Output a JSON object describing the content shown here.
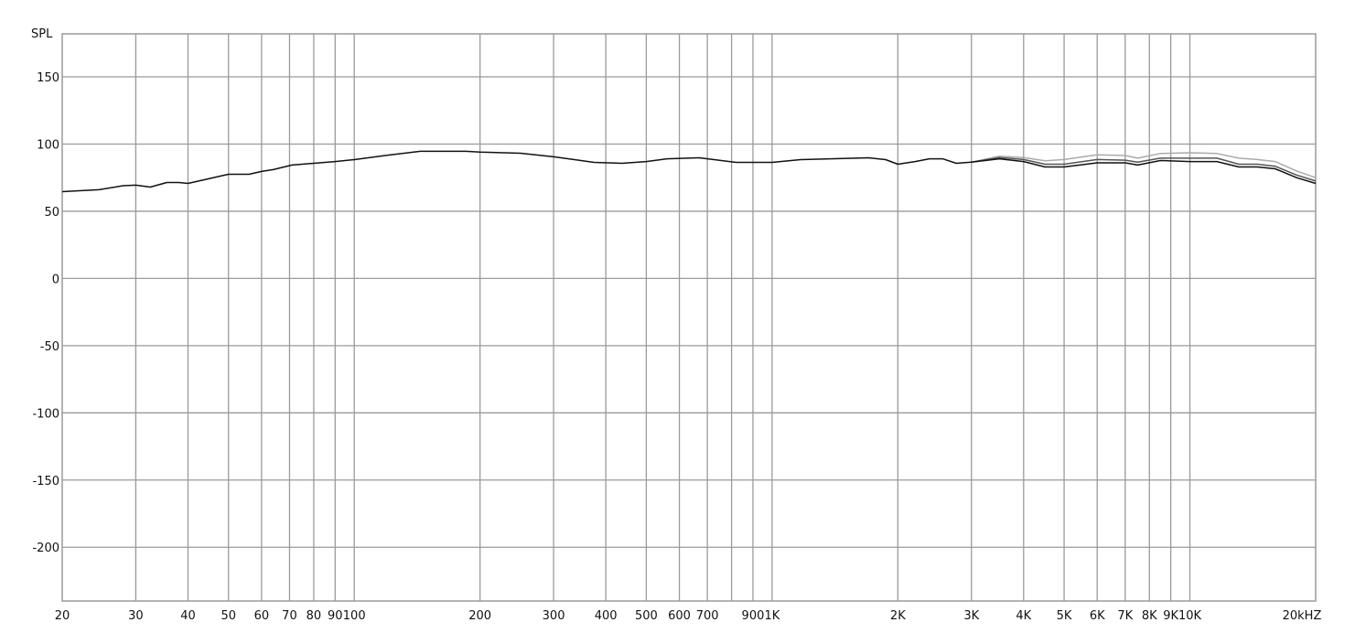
{
  "chart_data": {
    "type": "line",
    "title": "",
    "ylabel": "SPL",
    "xlabel": "",
    "x_scale": "log",
    "xlim": [
      20,
      20000
    ],
    "ylim": [
      -240,
      182
    ],
    "grid": true,
    "y_ticks": [
      150,
      100,
      50,
      0,
      -50,
      -100,
      -150,
      -200
    ],
    "y_tick_labels": [
      "150",
      "100",
      "50",
      "0",
      "-50",
      "-100",
      "-150",
      "-200"
    ],
    "x_gridlines": [
      30,
      40,
      50,
      60,
      70,
      80,
      90,
      100,
      200,
      300,
      400,
      500,
      600,
      700,
      800,
      900,
      1000,
      2000,
      3000,
      4000,
      5000,
      6000,
      7000,
      8000,
      9000,
      10000
    ],
    "x_ticks": [
      {
        "value": 20,
        "label": "20"
      },
      {
        "value": 30,
        "label": "30"
      },
      {
        "value": 40,
        "label": "40"
      },
      {
        "value": 50,
        "label": "50"
      },
      {
        "value": 60,
        "label": "60"
      },
      {
        "value": 70,
        "label": "70"
      },
      {
        "value": 80,
        "label": "80"
      },
      {
        "value": 90,
        "label": "90"
      },
      {
        "value": 100,
        "label": "100"
      },
      {
        "value": 200,
        "label": "200"
      },
      {
        "value": 300,
        "label": "300"
      },
      {
        "value": 400,
        "label": "400"
      },
      {
        "value": 500,
        "label": "500"
      },
      {
        "value": 600,
        "label": "600"
      },
      {
        "value": 700,
        "label": "700"
      },
      {
        "value": 900,
        "label": "900"
      },
      {
        "value": 1000,
        "label": "1K"
      },
      {
        "value": 2000,
        "label": "2K"
      },
      {
        "value": 3000,
        "label": "3K"
      },
      {
        "value": 4000,
        "label": "4K"
      },
      {
        "value": 5000,
        "label": "5K"
      },
      {
        "value": 6000,
        "label": "6K"
      },
      {
        "value": 7000,
        "label": "7K"
      },
      {
        "value": 8000,
        "label": "8K"
      },
      {
        "value": 9000,
        "label": "9K"
      },
      {
        "value": 10000,
        "label": "10K"
      },
      {
        "value": 20000,
        "label": "20kHZ"
      }
    ],
    "colors": {
      "grid": "#9a9a9a",
      "axis_text": "#111111"
    },
    "series": [
      {
        "color": "#aaaaaa",
        "x": [
          3000,
          3500,
          4000,
          4500,
          5000,
          6000,
          7000,
          7500,
          8500,
          10000,
          11600,
          13100,
          14500,
          16000,
          18000,
          20000
        ],
        "y": [
          86.5,
          91,
          90,
          87.5,
          88.5,
          92,
          91.5,
          89.5,
          93,
          93.5,
          93,
          89.5,
          88.5,
          87,
          80,
          75
        ]
      },
      {
        "color": "#555555",
        "x": [
          3000,
          3500,
          4000,
          4500,
          5000,
          6000,
          7000,
          7500,
          8500,
          10000,
          11600,
          13100,
          14500,
          16000,
          18000,
          20000
        ],
        "y": [
          86.5,
          90,
          88.5,
          85,
          85,
          88.5,
          88,
          86.5,
          89.5,
          89.5,
          89.5,
          85,
          85,
          83.5,
          77,
          72.5
        ]
      },
      {
        "color": "#111111",
        "x": [
          20,
          24.5,
          28,
          30,
          32.5,
          35.6,
          38,
          40,
          50,
          56,
          60,
          64,
          71,
          80,
          90,
          100,
          121,
          144,
          185,
          200,
          250,
          300,
          375,
          438,
          500,
          560,
          670,
          820,
          1000,
          1170,
          1700,
          1870,
          2000,
          2200,
          2380,
          2560,
          2760,
          3000,
          3500,
          4000,
          4500,
          5000,
          6000,
          7000,
          7500,
          8500,
          10000,
          11600,
          13100,
          14500,
          16000,
          18000,
          20000
        ],
        "y": [
          64.6,
          66,
          69,
          69.4,
          68,
          71.4,
          71.4,
          70.7,
          77.5,
          77.5,
          79.6,
          81,
          84.4,
          85.7,
          87,
          88.4,
          91.8,
          94.6,
          94.6,
          94,
          93.2,
          90.5,
          86.4,
          85.7,
          87,
          89,
          89.8,
          86.4,
          86.4,
          88.4,
          89.8,
          88.4,
          85,
          87,
          89,
          89,
          85.7,
          86.5,
          89,
          87,
          83,
          83,
          86,
          86,
          84.4,
          87.7,
          87,
          87,
          83,
          83,
          81.6,
          75,
          70.7
        ]
      }
    ]
  }
}
